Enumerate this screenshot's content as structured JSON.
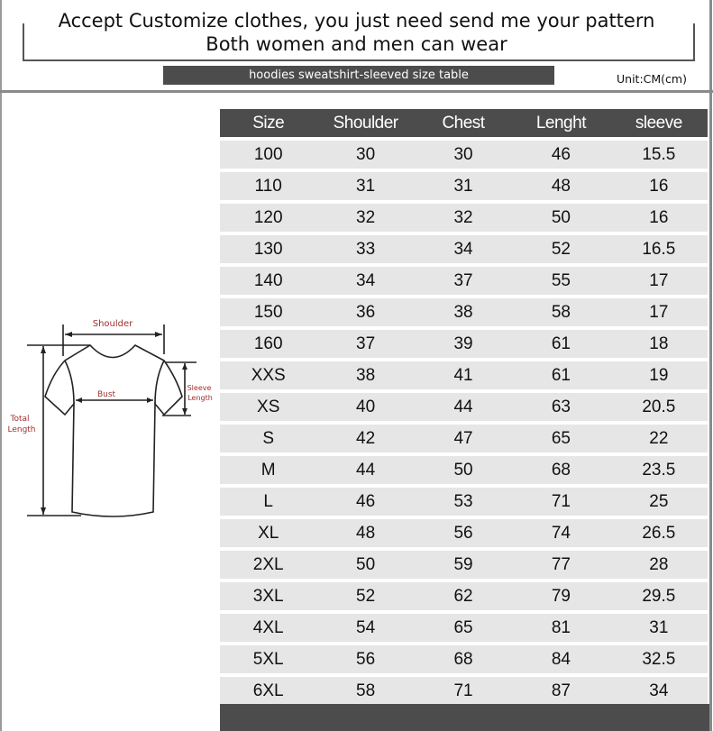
{
  "header": {
    "line1": "Accept Customize clothes, you just need send me your pattern",
    "line2": "Both women and men can wear",
    "banner": "hoodies sweatshirt-sleeved size table",
    "unit": "Unit:CM(cm)"
  },
  "diagram": {
    "shoulder": "Shoulder",
    "bust": "Bust",
    "sleeve1": "Sleeve",
    "sleeve2": "Length",
    "total1": "Total",
    "total2": "Length",
    "label_color": "#a03030"
  },
  "table": {
    "columns": [
      "Size",
      "Shoulder",
      "Chest",
      "Lenght",
      "sleeve"
    ],
    "rows": [
      [
        "100",
        "30",
        "30",
        "46",
        "15.5"
      ],
      [
        "110",
        "31",
        "31",
        "48",
        "16"
      ],
      [
        "120",
        "32",
        "32",
        "50",
        "16"
      ],
      [
        "130",
        "33",
        "34",
        "52",
        "16.5"
      ],
      [
        "140",
        "34",
        "37",
        "55",
        "17"
      ],
      [
        "150",
        "36",
        "38",
        "58",
        "17"
      ],
      [
        "160",
        "37",
        "39",
        "61",
        "18"
      ],
      [
        "XXS",
        "38",
        "41",
        "61",
        "19"
      ],
      [
        "XS",
        "40",
        "44",
        "63",
        "20.5"
      ],
      [
        "S",
        "42",
        "47",
        "65",
        "22"
      ],
      [
        "M",
        "44",
        "50",
        "68",
        "23.5"
      ],
      [
        "L",
        "46",
        "53",
        "71",
        "25"
      ],
      [
        "XL",
        "48",
        "56",
        "74",
        "26.5"
      ],
      [
        "2XL",
        "50",
        "59",
        "77",
        "28"
      ],
      [
        "3XL",
        "52",
        "62",
        "79",
        "29.5"
      ],
      [
        "4XL",
        "54",
        "65",
        "81",
        "31"
      ],
      [
        "5XL",
        "56",
        "68",
        "84",
        "32.5"
      ],
      [
        "6XL",
        "58",
        "71",
        "87",
        "34"
      ]
    ]
  }
}
